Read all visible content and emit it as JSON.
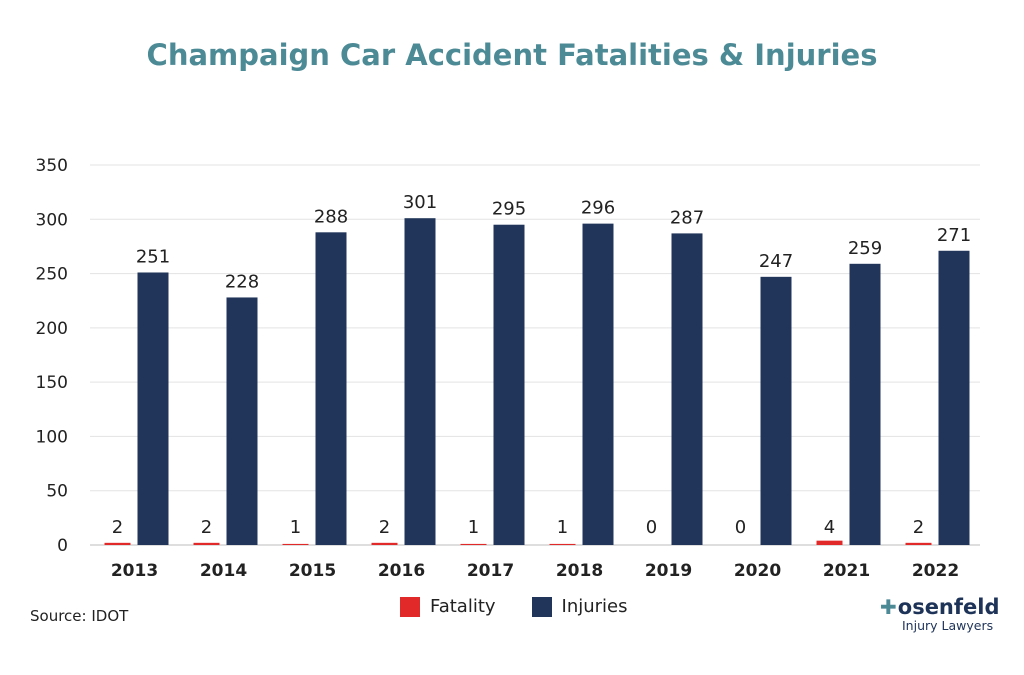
{
  "title": "Champaign Car Accident Fatalities & Injuries",
  "source": "Source: IDOT",
  "logo": {
    "brand": "Rosenfeld",
    "brand_mark": "R",
    "brand_rest": "osenfeld",
    "sub": "Injury Lawyers"
  },
  "colors": {
    "fatality": "#e2292a",
    "injuries": "#21355a",
    "title": "#4c8a96",
    "grid": "#e3e3e3"
  },
  "chart_data": {
    "type": "bar",
    "title": "Champaign Car Accident Fatalities & Injuries",
    "categories": [
      "2013",
      "2014",
      "2015",
      "2016",
      "2017",
      "2018",
      "2019",
      "2020",
      "2021",
      "2022"
    ],
    "series": [
      {
        "name": "Fatality",
        "values": [
          2,
          2,
          1,
          2,
          1,
          1,
          0,
          0,
          4,
          2
        ]
      },
      {
        "name": "Injuries",
        "values": [
          251,
          228,
          288,
          301,
          295,
          296,
          287,
          247,
          259,
          271
        ]
      }
    ],
    "ylim": [
      0,
      350
    ],
    "yticks": [
      0,
      50,
      100,
      150,
      200,
      250,
      300,
      350
    ],
    "grid": true,
    "legend": "bottom-center",
    "xlabel": "",
    "ylabel": ""
  }
}
